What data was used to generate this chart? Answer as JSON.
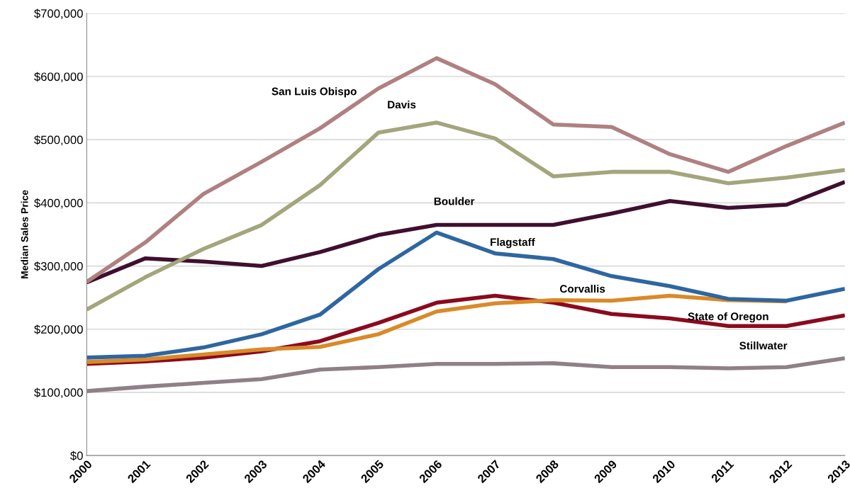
{
  "chart_data": {
    "type": "line",
    "ylabel": "Median Sales Price",
    "categories": [
      "2000",
      "2001",
      "2002",
      "2003",
      "2004",
      "2005",
      "2006",
      "2007",
      "2008",
      "2009",
      "2010",
      "2011",
      "2012",
      "2013"
    ],
    "ylim": [
      0,
      700000
    ],
    "yticks": [
      {
        "value": 0,
        "label": "$0"
      },
      {
        "value": 100000,
        "label": "$100,000"
      },
      {
        "value": 200000,
        "label": "$200,000"
      },
      {
        "value": 300000,
        "label": "$300,000"
      },
      {
        "value": 400000,
        "label": "$400,000"
      },
      {
        "value": 500000,
        "label": "$500,000"
      },
      {
        "value": 600000,
        "label": "$600,000"
      },
      {
        "value": 700000,
        "label": "$700,000"
      }
    ],
    "grid": "y",
    "legend": false,
    "marker": "none",
    "line_style": "solid",
    "series": [
      {
        "name": "Stillwater",
        "color": "#8f8088",
        "values": [
          102000,
          109000,
          115000,
          121000,
          136000,
          140000,
          145000,
          145000,
          146000,
          140000,
          140000,
          138000,
          140000,
          154000
        ]
      },
      {
        "name": "State of Oregon",
        "color": "#8b0a1e",
        "values": [
          145000,
          149000,
          155000,
          165000,
          181000,
          210000,
          242000,
          253000,
          242000,
          224000,
          217000,
          205000,
          205000,
          222000
        ]
      },
      {
        "name": "Corvallis",
        "color": "#d98a28",
        "values": [
          148000,
          152000,
          160000,
          168000,
          172000,
          192000,
          228000,
          241000,
          246000,
          245000,
          253000,
          246000,
          244000,
          null
        ]
      },
      {
        "name": "Flagstaff",
        "color": "#2e66a0",
        "values": [
          155000,
          158000,
          171000,
          192000,
          223000,
          295000,
          353000,
          320000,
          311000,
          284000,
          268000,
          248000,
          245000,
          264000
        ]
      },
      {
        "name": "Boulder",
        "color": "#3f0f30",
        "values": [
          274000,
          312000,
          307000,
          300000,
          322000,
          349000,
          365000,
          365000,
          365000,
          383000,
          403000,
          392000,
          397000,
          433000
        ]
      },
      {
        "name": "Davis",
        "color": "#a3a57c",
        "values": [
          231000,
          282000,
          327000,
          365000,
          428000,
          511000,
          527000,
          502000,
          442000,
          449000,
          449000,
          431000,
          440000,
          452000
        ]
      },
      {
        "name": "San Luis Obispo",
        "color": "#b08080",
        "values": [
          275000,
          337000,
          414000,
          465000,
          518000,
          581000,
          629000,
          588000,
          524000,
          520000,
          477000,
          449000,
          490000,
          527000
        ]
      }
    ]
  }
}
